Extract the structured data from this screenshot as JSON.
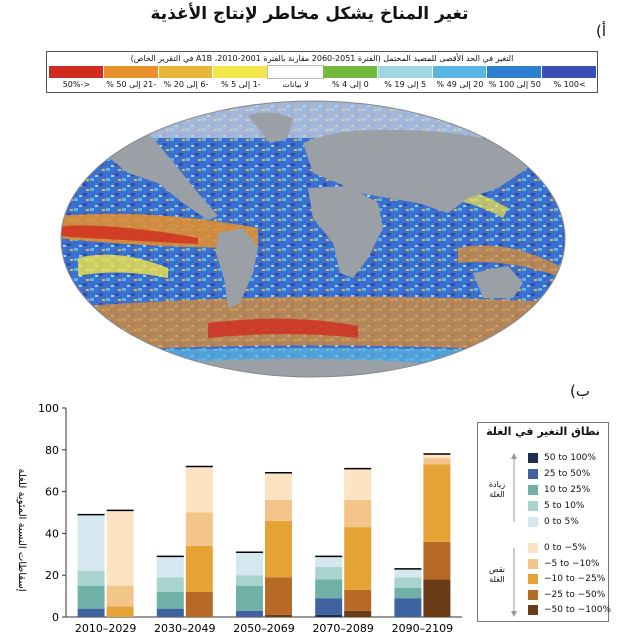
{
  "page": {
    "title": "تغير المناخ يشكل مخاطر لإنتاج الأغذية",
    "label_a": "(أ",
    "label_b": "(ب"
  },
  "map_legend": {
    "title": "التغير في الحد الأقصى للمصيد المحتمل (الفترة 2051-2060 مقارنة بالفترة 2001-2010، A1B في التقرير الخاص)",
    "items": [
      {
        "label": "<-50%",
        "color": "#d12a1e"
      },
      {
        "label": "-21 إلى 50 %",
        "color": "#e8902b"
      },
      {
        "label": "-6 إلى 20 %",
        "color": "#e9b53a"
      },
      {
        "label": "-1 إلى 5 %",
        "color": "#f2e64a"
      },
      {
        "label": "لا بيانات",
        "color": "#ffffff"
      },
      {
        "label": "0 إلى 4 %",
        "color": "#73b83f"
      },
      {
        "label": "5 إلى 19 %",
        "color": "#9fd6e0"
      },
      {
        "label": "20 إلى 49 %",
        "color": "#5bb6e3"
      },
      {
        "label": "50 إلى 100 %",
        "color": "#2f7fd0"
      },
      {
        "label": ">100 %",
        "color": "#3b4fb8"
      }
    ]
  },
  "bar_legend": {
    "title": "نطاق التغير في الغلة",
    "increase_label": "زيادة الغلة",
    "decrease_label": "نقص الغلة",
    "items": [
      {
        "label": "50 to 100%",
        "color": "#1b2f52"
      },
      {
        "label": "25 to 50%",
        "color": "#3f63a0"
      },
      {
        "label": "10 to 25%",
        "color": "#6fb1a6"
      },
      {
        "label": "5 to 10%",
        "color": "#a9d3cf"
      },
      {
        "label": "0 to 5%",
        "color": "#d6e8ef"
      },
      {
        "label": "0 to −5%",
        "color": "#fbe3c4"
      },
      {
        "label": "−5 to −10%",
        "color": "#f4c58a"
      },
      {
        "label": "−10 to −25%",
        "color": "#e5a335"
      },
      {
        "label": "−25 to −50%",
        "color": "#b66a25"
      },
      {
        "label": "−50 to −100%",
        "color": "#6b3a16"
      }
    ]
  },
  "chart_data": {
    "type": "bar",
    "ylabel": "إسقاطات النسبة المئوية للغلة",
    "ylim": [
      0,
      100
    ],
    "yticks": [
      0,
      20,
      40,
      60,
      80,
      100
    ],
    "categories": [
      "2010–2029",
      "2030–2049",
      "2050–2069",
      "2070–2089",
      "2090–2109"
    ],
    "bars": [
      {
        "category": "2010–2029",
        "side": "increase",
        "segments": [
          {
            "range": "25 to 50%",
            "value": 4
          },
          {
            "range": "10 to 25%",
            "value": 11
          },
          {
            "range": "5 to 10%",
            "value": 7
          },
          {
            "range": "0 to 5%",
            "value": 27
          }
        ]
      },
      {
        "category": "2010–2029",
        "side": "decrease",
        "segments": [
          {
            "range": "−10 to −25%",
            "value": 5
          },
          {
            "range": "−5 to −10%",
            "value": 10
          },
          {
            "range": "0 to −5%",
            "value": 36
          }
        ]
      },
      {
        "category": "2030–2049",
        "side": "increase",
        "segments": [
          {
            "range": "25 to 50%",
            "value": 4
          },
          {
            "range": "10 to 25%",
            "value": 8
          },
          {
            "range": "5 to 10%",
            "value": 7
          },
          {
            "range": "0 to 5%",
            "value": 10
          }
        ]
      },
      {
        "category": "2030–2049",
        "side": "decrease",
        "segments": [
          {
            "range": "−25 to −50%",
            "value": 12
          },
          {
            "range": "−10 to −25%",
            "value": 22
          },
          {
            "range": "−5 to −10%",
            "value": 16
          },
          {
            "range": "0 to −5%",
            "value": 22
          }
        ]
      },
      {
        "category": "2050–2069",
        "side": "increase",
        "segments": [
          {
            "range": "25 to 50%",
            "value": 3
          },
          {
            "range": "10 to 25%",
            "value": 12
          },
          {
            "range": "5 to 10%",
            "value": 5
          },
          {
            "range": "0 to 5%",
            "value": 11
          }
        ]
      },
      {
        "category": "2050–2069",
        "side": "decrease",
        "segments": [
          {
            "range": "−50 to −100%",
            "value": 1
          },
          {
            "range": "−25 to −50%",
            "value": 18
          },
          {
            "range": "−10 to −25%",
            "value": 27
          },
          {
            "range": "−5 to −10%",
            "value": 10
          },
          {
            "range": "0 to −5%",
            "value": 13
          }
        ]
      },
      {
        "category": "2070–2089",
        "side": "increase",
        "segments": [
          {
            "range": "50 to 100%",
            "value": 1
          },
          {
            "range": "25 to 50%",
            "value": 8
          },
          {
            "range": "10 to 25%",
            "value": 9
          },
          {
            "range": "5 to 10%",
            "value": 6
          },
          {
            "range": "0 to 5%",
            "value": 5
          }
        ]
      },
      {
        "category": "2070–2089",
        "side": "decrease",
        "segments": [
          {
            "range": "−50 to −100%",
            "value": 3
          },
          {
            "range": "−25 to −50%",
            "value": 10
          },
          {
            "range": "−10 to −25%",
            "value": 30
          },
          {
            "range": "−5 to −10%",
            "value": 13
          },
          {
            "range": "0 to −5%",
            "value": 15
          }
        ]
      },
      {
        "category": "2090–2109",
        "side": "increase",
        "segments": [
          {
            "range": "25 to 50%",
            "value": 9
          },
          {
            "range": "10 to 25%",
            "value": 5
          },
          {
            "range": "5 to 10%",
            "value": 5
          },
          {
            "range": "0 to 5%",
            "value": 4
          }
        ]
      },
      {
        "category": "2090–2109",
        "side": "decrease",
        "segments": [
          {
            "range": "−50 to −100%",
            "value": 18
          },
          {
            "range": "−25 to −50%",
            "value": 18
          },
          {
            "range": "−10 to −25%",
            "value": 37
          },
          {
            "range": "−5 to −10%",
            "value": 3
          },
          {
            "range": "0 to −5%",
            "value": 2
          }
        ]
      }
    ]
  }
}
